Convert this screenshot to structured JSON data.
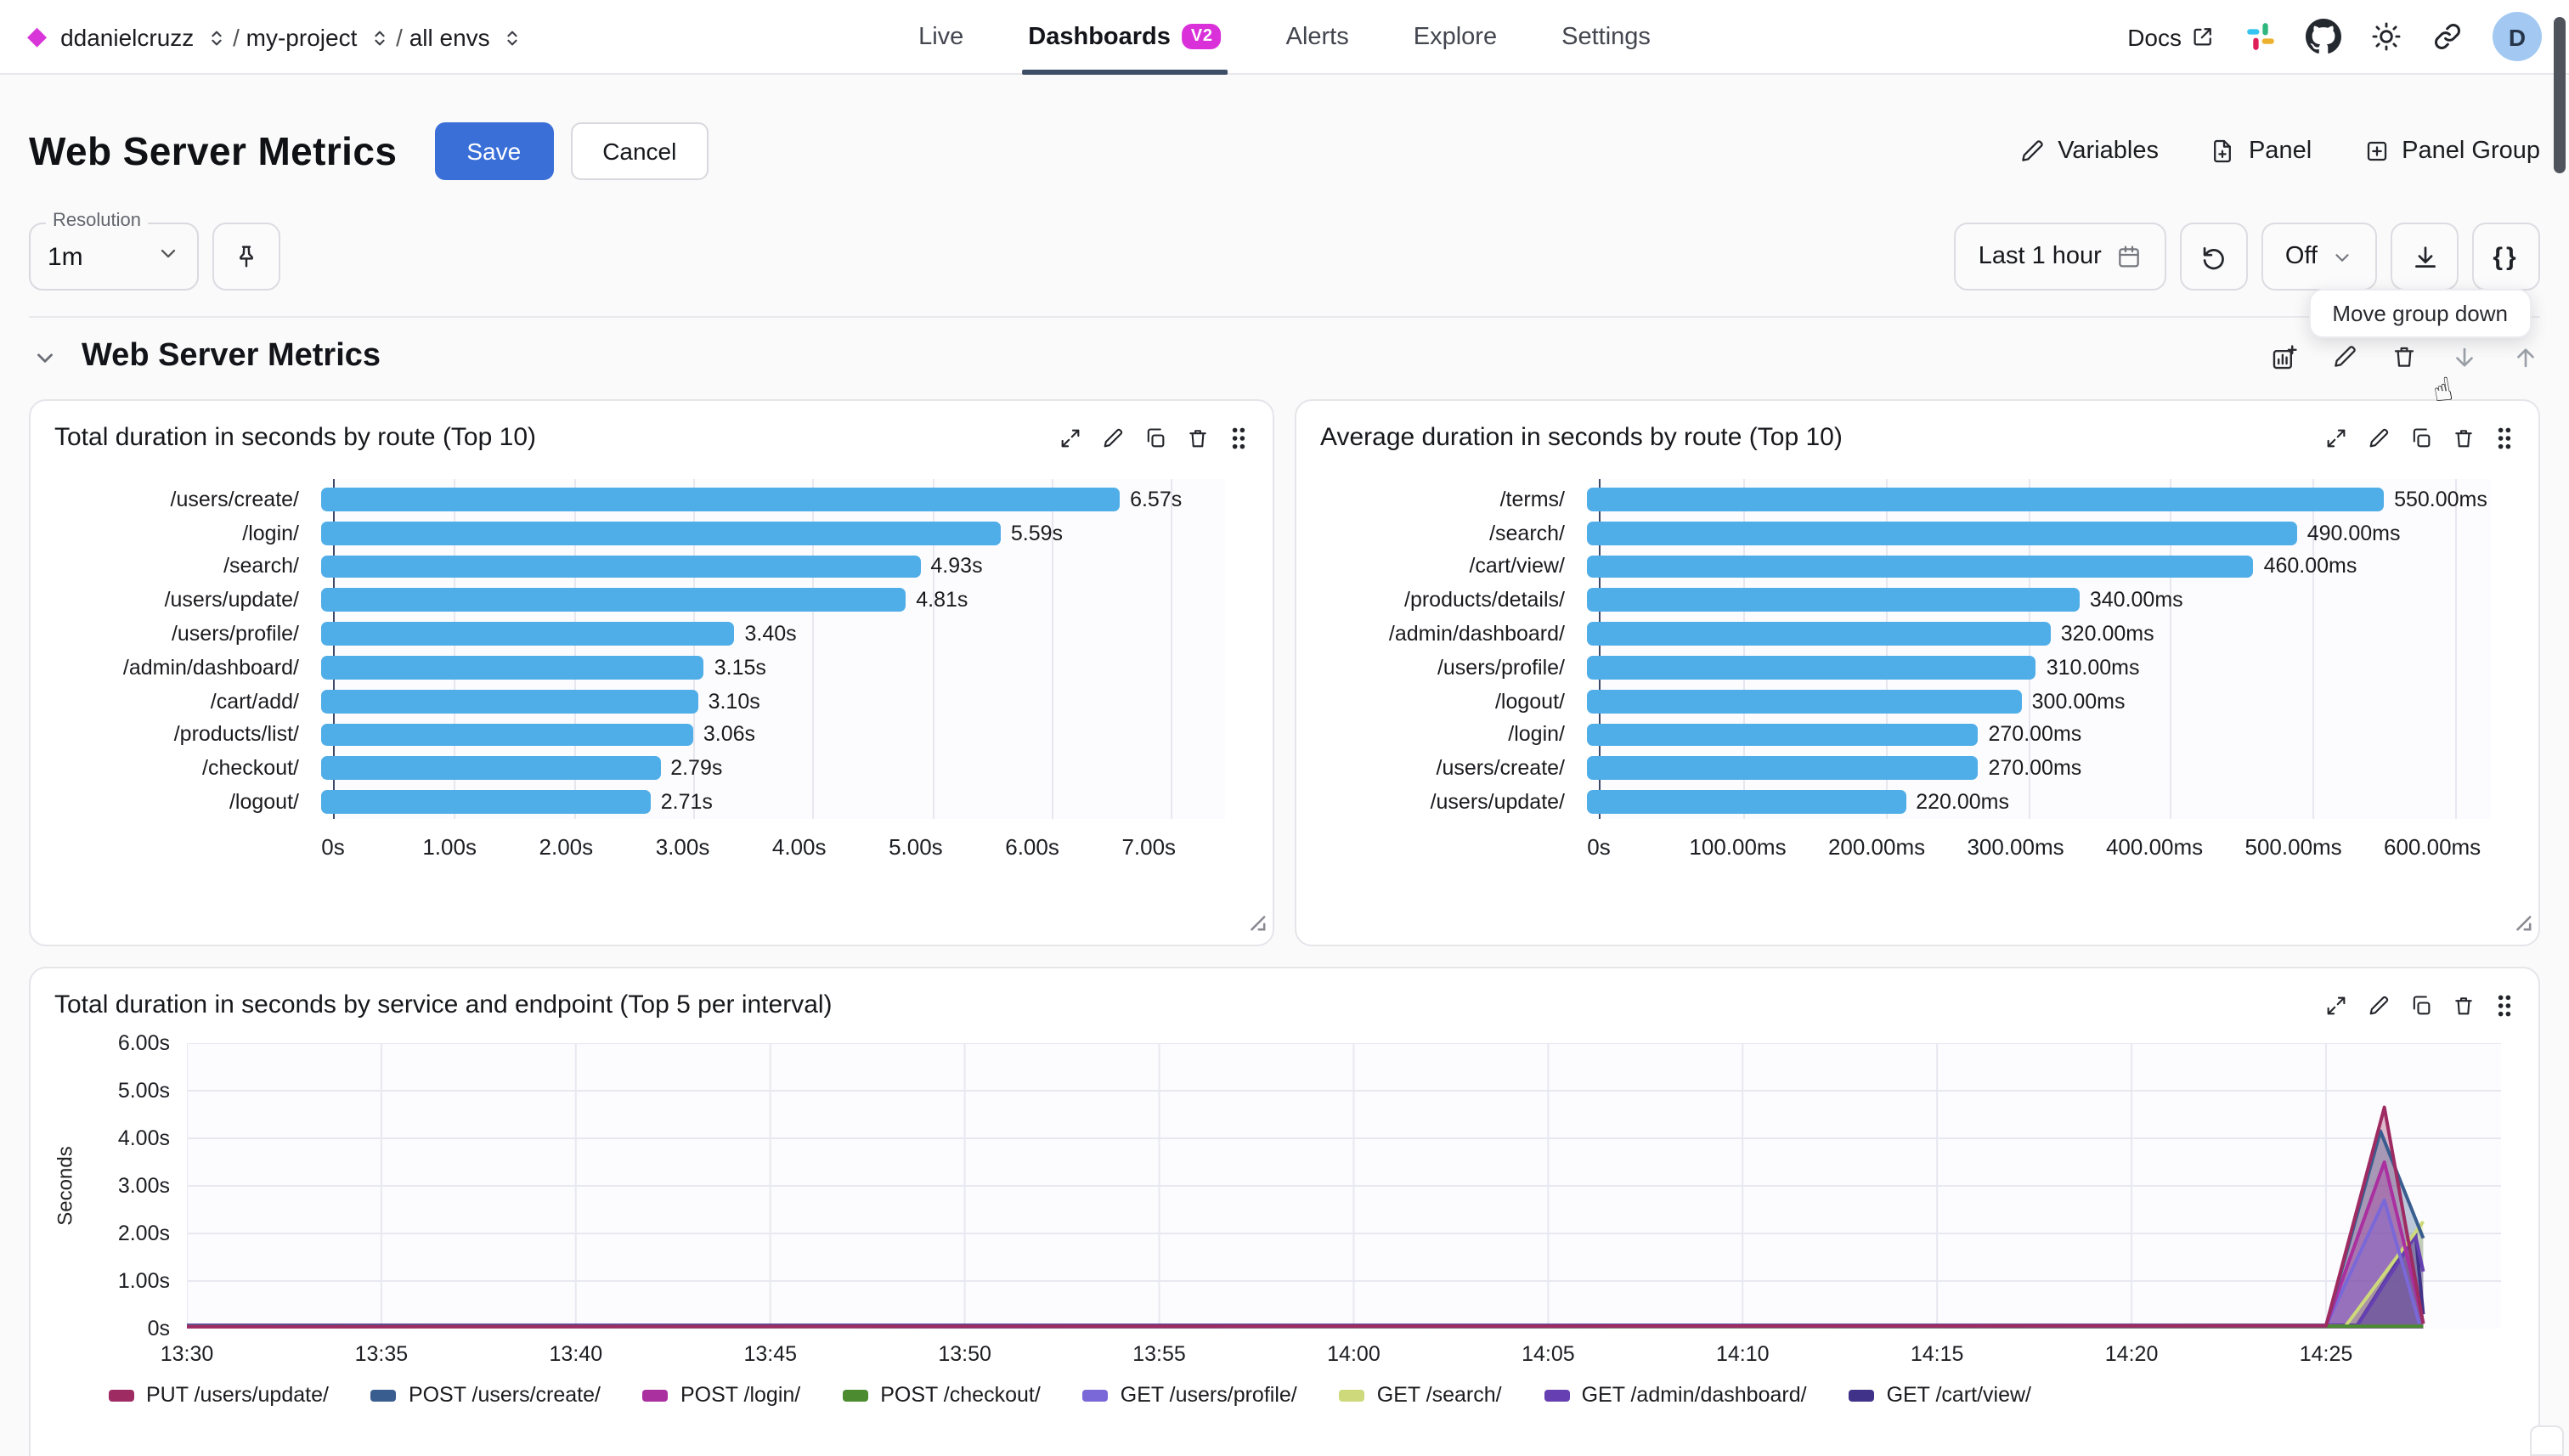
{
  "nav": {
    "breadcrumb": [
      "ddanielcruzz",
      "my-project",
      "all envs"
    ],
    "tabs": [
      {
        "label": "Live",
        "active": false
      },
      {
        "label": "Dashboards",
        "active": true,
        "badge": "V2"
      },
      {
        "label": "Alerts",
        "active": false
      },
      {
        "label": "Explore",
        "active": false
      },
      {
        "label": "Settings",
        "active": false
      }
    ],
    "docs_label": "Docs",
    "avatar_initial": "D"
  },
  "toolbar": {
    "title": "Web Server Metrics",
    "save_label": "Save",
    "cancel_label": "Cancel",
    "variables_label": "Variables",
    "panel_label": "Panel",
    "panel_group_label": "Panel Group"
  },
  "controls": {
    "resolution_label": "Resolution",
    "resolution_value": "1m",
    "time_range_value": "Last 1 hour",
    "refresh_interval_value": "Off",
    "code_button_label": "{}",
    "tooltip_text": "Move group down"
  },
  "group": {
    "title": "Web Server Metrics"
  },
  "colors": {
    "accent_blue": "#3a6fd8",
    "brand_magenta": "#d930d9",
    "bar_fill": "#4fade8",
    "axis_line": "#3d4968",
    "gridline": "#e7e7f0"
  },
  "chart_data": [
    {
      "type": "bar",
      "orientation": "horizontal",
      "title": "Total duration in seconds by route (Top 10)",
      "categories": [
        "/users/create/",
        "/login/",
        "/search/",
        "/users/update/",
        "/users/profile/",
        "/admin/dashboard/",
        "/cart/add/",
        "/products/list/",
        "/checkout/",
        "/logout/"
      ],
      "values": [
        6.57,
        5.59,
        4.93,
        4.81,
        3.4,
        3.15,
        3.1,
        3.06,
        2.79,
        2.71
      ],
      "value_labels": [
        "6.57s",
        "5.59s",
        "4.93s",
        "4.81s",
        "3.40s",
        "3.15s",
        "3.10s",
        "3.06s",
        "2.79s",
        "2.71s"
      ],
      "unit": "s",
      "xlim": [
        0,
        7.45
      ],
      "xticks": [
        {
          "v": 0,
          "label": "0s"
        },
        {
          "v": 1,
          "label": "1.00s"
        },
        {
          "v": 2,
          "label": "2.00s"
        },
        {
          "v": 3,
          "label": "3.00s"
        },
        {
          "v": 4,
          "label": "4.00s"
        },
        {
          "v": 5,
          "label": "5.00s"
        },
        {
          "v": 6,
          "label": "6.00s"
        },
        {
          "v": 7,
          "label": "7.00s"
        }
      ],
      "bar_color": "#4fade8"
    },
    {
      "type": "bar",
      "orientation": "horizontal",
      "title": "Average duration in seconds by route (Top 10)",
      "categories": [
        "/terms/",
        "/search/",
        "/cart/view/",
        "/products/details/",
        "/admin/dashboard/",
        "/users/profile/",
        "/logout/",
        "/login/",
        "/users/create/",
        "/users/update/"
      ],
      "values": [
        550,
        490,
        460,
        340,
        320,
        310,
        300,
        270,
        270,
        220
      ],
      "value_labels": [
        "550.00ms",
        "490.00ms",
        "460.00ms",
        "340.00ms",
        "320.00ms",
        "310.00ms",
        "300.00ms",
        "270.00ms",
        "270.00ms",
        "220.00ms"
      ],
      "unit": "ms",
      "xlim": [
        0,
        625
      ],
      "xticks": [
        {
          "v": 0,
          "label": "0s"
        },
        {
          "v": 100,
          "label": "100.00ms"
        },
        {
          "v": 200,
          "label": "200.00ms"
        },
        {
          "v": 300,
          "label": "300.00ms"
        },
        {
          "v": 400,
          "label": "400.00ms"
        },
        {
          "v": 500,
          "label": "500.00ms"
        },
        {
          "v": 600,
          "label": "600.00ms"
        }
      ],
      "bar_color": "#4fade8"
    },
    {
      "type": "area",
      "title": "Total duration in seconds by service and endpoint (Top 5 per interval)",
      "ylabel": "Seconds",
      "ylim": [
        0,
        6
      ],
      "yticks": [
        {
          "v": 0,
          "label": "0s"
        },
        {
          "v": 1,
          "label": "1.00s"
        },
        {
          "v": 2,
          "label": "2.00s"
        },
        {
          "v": 3,
          "label": "3.00s"
        },
        {
          "v": 4,
          "label": "4.00s"
        },
        {
          "v": 5,
          "label": "5.00s"
        },
        {
          "v": 6,
          "label": "6.00s"
        }
      ],
      "x_domain_minutes": [
        0,
        59.5
      ],
      "x_start_time": "13:30",
      "xticks": [
        {
          "t": 0,
          "label": "13:30"
        },
        {
          "t": 5,
          "label": "13:35"
        },
        {
          "t": 10,
          "label": "13:40"
        },
        {
          "t": 15,
          "label": "13:45"
        },
        {
          "t": 20,
          "label": "13:50"
        },
        {
          "t": 25,
          "label": "13:55"
        },
        {
          "t": 30,
          "label": "14:00"
        },
        {
          "t": 35,
          "label": "14:05"
        },
        {
          "t": 40,
          "label": "14:10"
        },
        {
          "t": 45,
          "label": "14:15"
        },
        {
          "t": 50,
          "label": "14:20"
        },
        {
          "t": 55,
          "label": "14:25"
        }
      ],
      "legend_position": "bottom",
      "series": [
        {
          "name": "PUT /users/update/",
          "color": "#9e2b62",
          "points": [
            [
              0,
              0.04
            ],
            [
              55,
              0.06
            ],
            [
              56.5,
              4.65
            ],
            [
              57.5,
              0.1
            ]
          ]
        },
        {
          "name": "POST /users/create/",
          "color": "#3a5d8f",
          "points": [
            [
              0,
              0.05
            ],
            [
              55,
              0.06
            ],
            [
              56.4,
              4.15
            ],
            [
              57.5,
              1.9
            ]
          ]
        },
        {
          "name": "POST /login/",
          "color": "#aa30a0",
          "points": [
            [
              0,
              0.04
            ],
            [
              55,
              0.06
            ],
            [
              56.5,
              3.5
            ],
            [
              57.5,
              0.12
            ]
          ]
        },
        {
          "name": "POST /checkout/",
          "color": "#4d8b31",
          "points": [
            [
              0,
              0.05
            ],
            [
              57.5,
              0.05
            ]
          ]
        },
        {
          "name": "GET /users/profile/",
          "color": "#7a68d8",
          "points": [
            [
              0,
              0.05
            ],
            [
              55,
              0.06
            ],
            [
              56.5,
              2.7
            ],
            [
              57.4,
              0.1
            ]
          ]
        },
        {
          "name": "GET /search/",
          "color": "#cdd97a",
          "points": [
            [
              0,
              0.04
            ],
            [
              55.5,
              0.05
            ],
            [
              57.5,
              2.25
            ]
          ]
        },
        {
          "name": "GET /admin/dashboard/",
          "color": "#6640b2",
          "points": [
            [
              0,
              0.06
            ],
            [
              55.8,
              0.06
            ],
            [
              57.3,
              1.95
            ],
            [
              57.5,
              1.2
            ]
          ]
        },
        {
          "name": "GET /cart/view/",
          "color": "#413289",
          "points": [
            [
              0,
              0.07
            ],
            [
              55.8,
              0.07
            ],
            [
              57.3,
              2.0
            ],
            [
              57.5,
              0.3
            ]
          ]
        }
      ]
    }
  ]
}
